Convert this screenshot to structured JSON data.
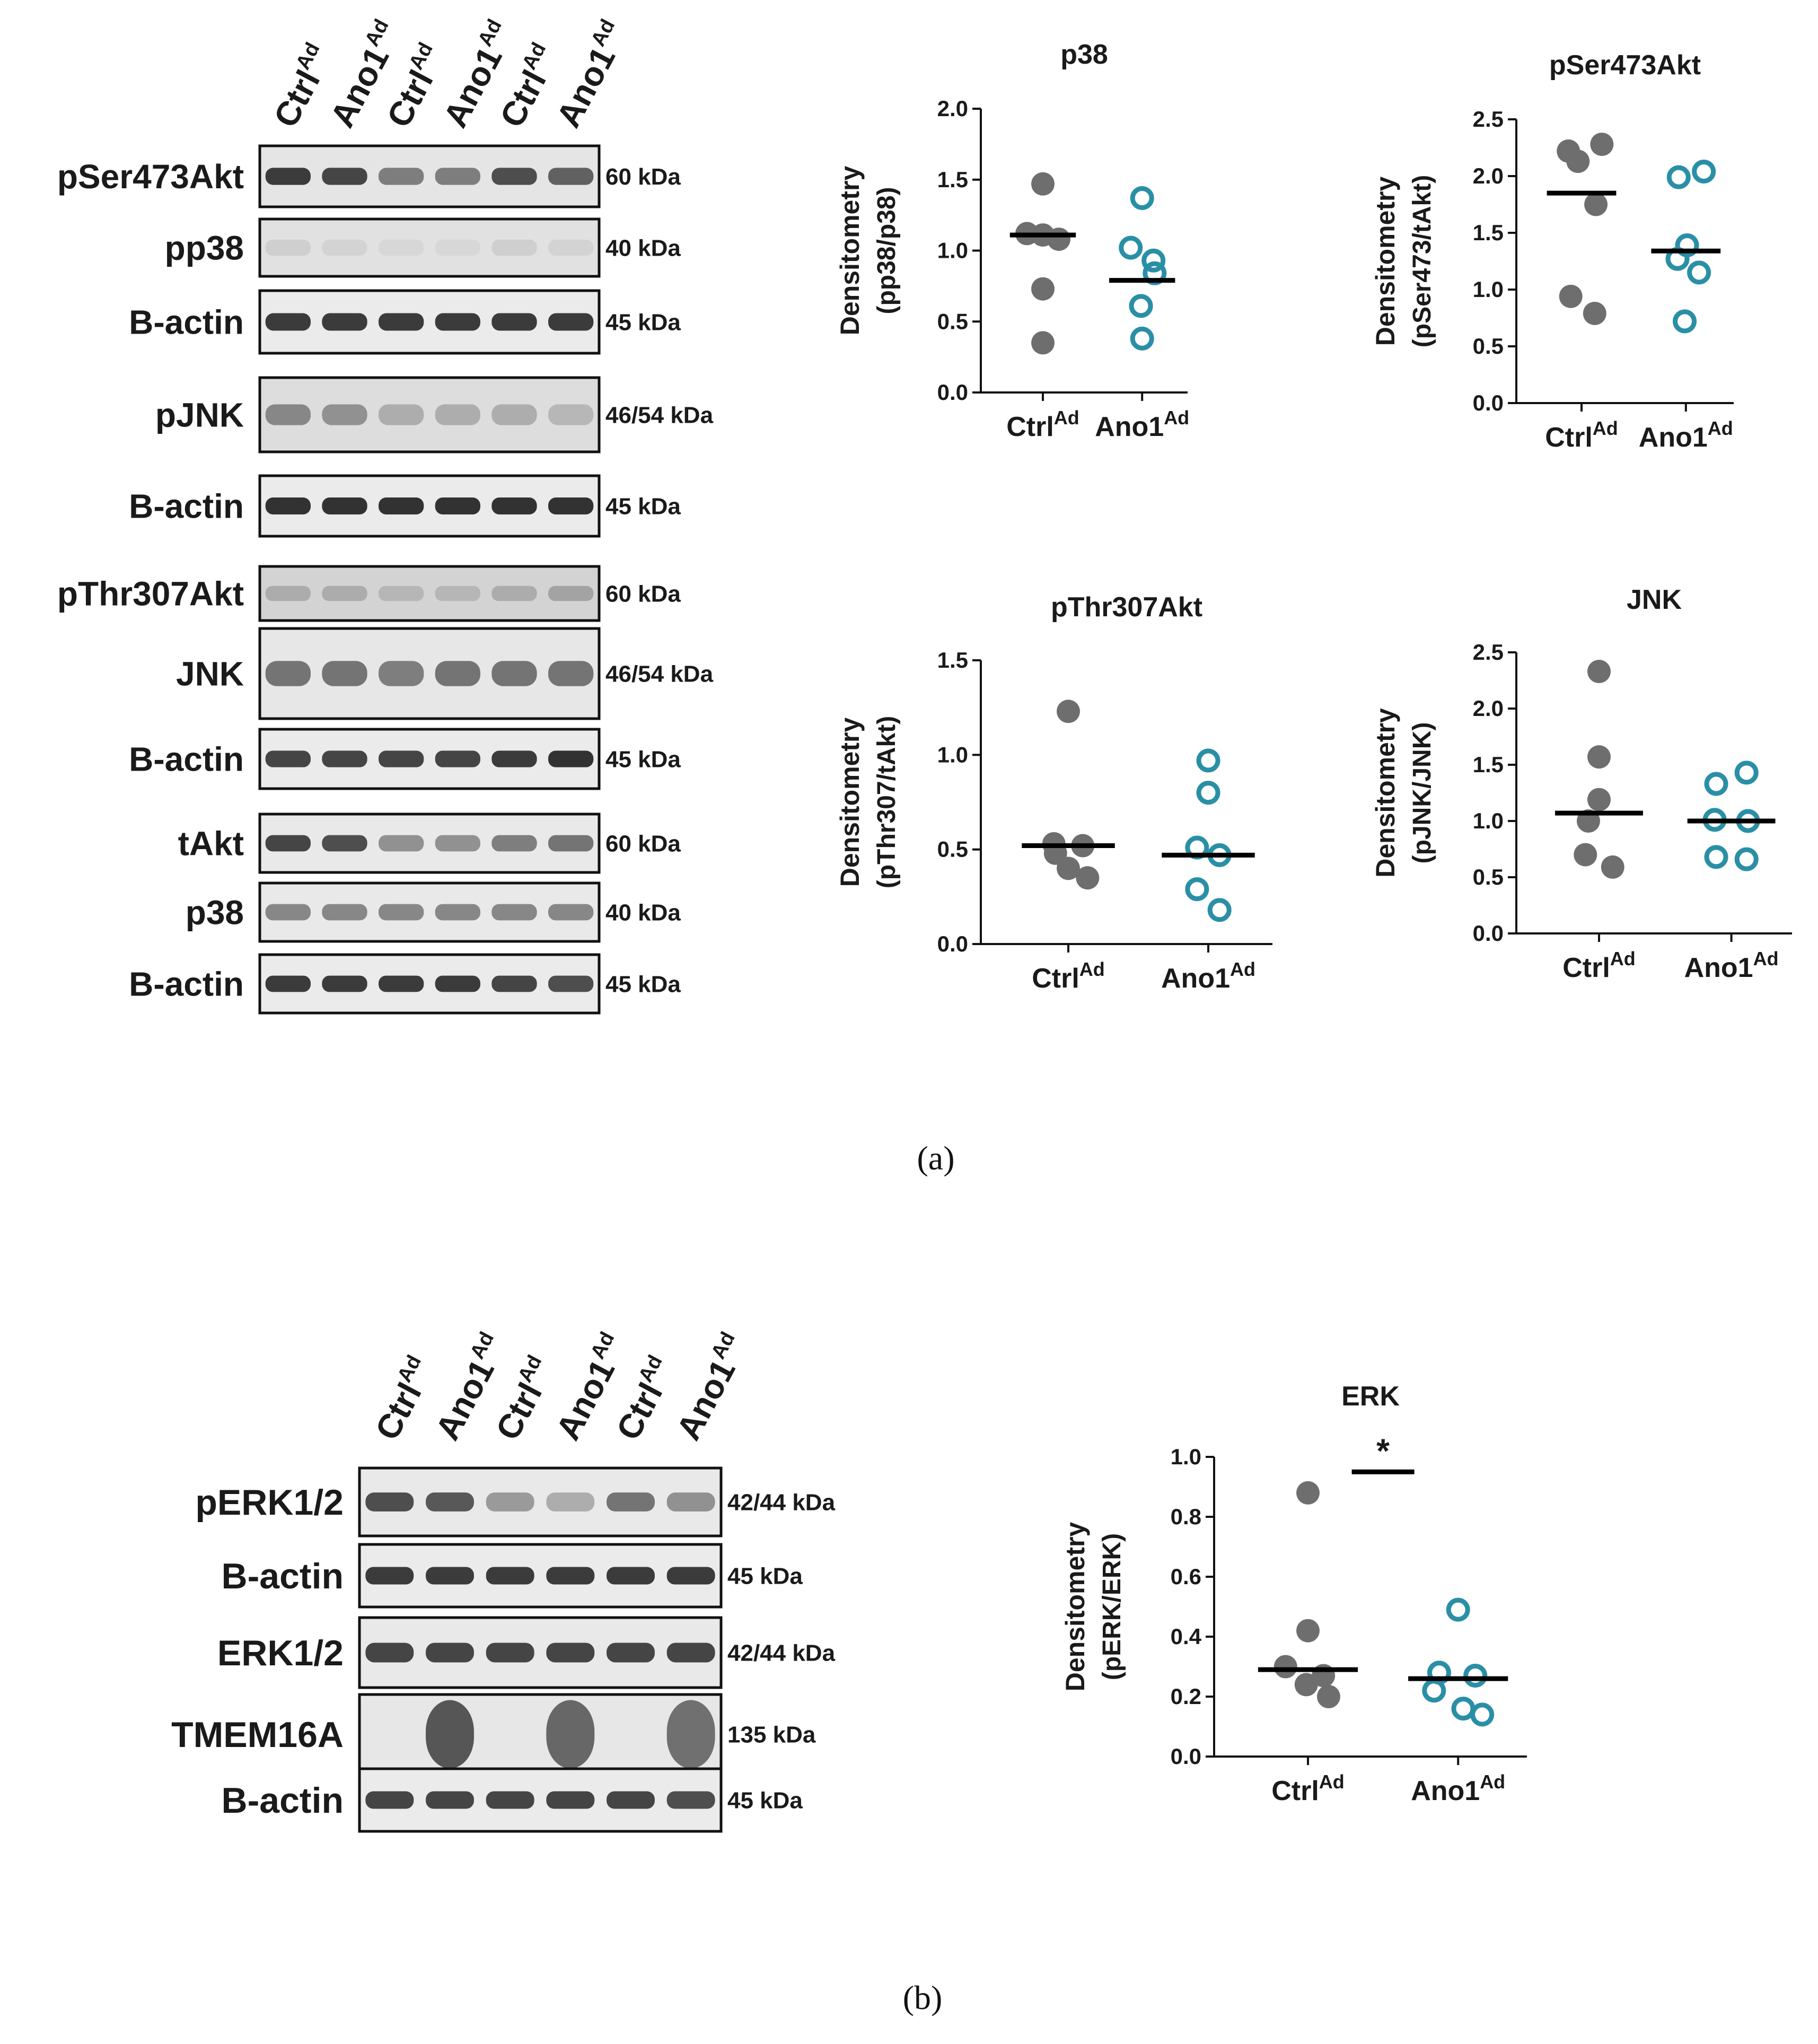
{
  "panel_a": {
    "letter_label": "(a)",
    "blot": {
      "lanes": [
        {
          "name": "Ctrl",
          "sup": "Ad"
        },
        {
          "name": "Ano1",
          "sup": "Ad"
        },
        {
          "name": "Ctrl",
          "sup": "Ad"
        },
        {
          "name": "Ano1",
          "sup": "Ad"
        },
        {
          "name": "Ctrl",
          "sup": "Ad"
        },
        {
          "name": "Ano1",
          "sup": "Ad"
        }
      ],
      "rows": [
        {
          "label": "pSer473Akt",
          "kda": "60 kDa",
          "intensity": [
            0.9,
            0.85,
            0.55,
            0.55,
            0.8,
            0.7
          ],
          "smear": 0.15
        },
        {
          "label": "pp38",
          "kda": "40 kDa",
          "intensity": [
            0.12,
            0.1,
            0.08,
            0.08,
            0.12,
            0.1
          ],
          "smear": 0.25
        },
        {
          "label": "B-actin",
          "kda": "45 kDa",
          "intensity": [
            0.9,
            0.9,
            0.9,
            0.9,
            0.9,
            0.9
          ],
          "smear": 0
        },
        {
          "label": "pJNK",
          "kda": "46/54 kDa",
          "intensity": [
            0.5,
            0.45,
            0.3,
            0.3,
            0.3,
            0.25
          ],
          "smear": 0.35
        },
        {
          "label": "B-actin",
          "kda": "45 kDa",
          "intensity": [
            0.95,
            0.95,
            0.95,
            0.95,
            0.95,
            0.95
          ],
          "smear": 0
        },
        {
          "label": "pThr307Akt",
          "kda": "60 kDa",
          "intensity": [
            0.3,
            0.3,
            0.25,
            0.25,
            0.3,
            0.35
          ],
          "smear": 0.6
        },
        {
          "label": "JNK",
          "kda": "46/54 kDa",
          "intensity": [
            0.6,
            0.6,
            0.55,
            0.6,
            0.6,
            0.6
          ],
          "smear": 0.1
        },
        {
          "label": "B-actin",
          "kda": "45 kDa",
          "intensity": [
            0.85,
            0.85,
            0.85,
            0.85,
            0.9,
            0.95
          ],
          "smear": 0
        },
        {
          "label": "tAkt",
          "kda": "60 kDa",
          "intensity": [
            0.85,
            0.8,
            0.45,
            0.45,
            0.55,
            0.6
          ],
          "smear": 0.05
        },
        {
          "label": "p38",
          "kda": "40 kDa",
          "intensity": [
            0.5,
            0.5,
            0.5,
            0.5,
            0.5,
            0.5
          ],
          "smear": 0.05
        },
        {
          "label": "B-actin",
          "kda": "45 kDa",
          "intensity": [
            0.9,
            0.9,
            0.9,
            0.9,
            0.85,
            0.8
          ],
          "smear": 0
        }
      ]
    }
  },
  "panel_b": {
    "letter_label": "(b)",
    "blot": {
      "lanes": [
        {
          "name": "Ctrl",
          "sup": "Ad"
        },
        {
          "name": "Ano1",
          "sup": "Ad"
        },
        {
          "name": "Ctrl",
          "sup": "Ad"
        },
        {
          "name": "Ano1",
          "sup": "Ad"
        },
        {
          "name": "Ctrl",
          "sup": "Ad"
        },
        {
          "name": "Ano1",
          "sup": "Ad"
        }
      ],
      "rows": [
        {
          "label": "pERK1/2",
          "kda": "42/44 kDa",
          "intensity": [
            0.8,
            0.75,
            0.4,
            0.3,
            0.6,
            0.45
          ],
          "smear": 0.05
        },
        {
          "label": "B-actin",
          "kda": "45 kDa",
          "intensity": [
            0.9,
            0.9,
            0.9,
            0.9,
            0.9,
            0.9
          ],
          "smear": 0
        },
        {
          "label": "ERK1/2",
          "kda": "42/44 kDa",
          "intensity": [
            0.85,
            0.85,
            0.85,
            0.85,
            0.85,
            0.85
          ],
          "smear": 0.05
        },
        {
          "label": "TMEM16A",
          "kda": "135 kDa",
          "intensity": [
            0.0,
            0.85,
            0.0,
            0.75,
            0.0,
            0.7
          ],
          "smear": 0.1
        },
        {
          "label": "B-actin",
          "kda": "45 kDa",
          "intensity": [
            0.85,
            0.85,
            0.85,
            0.85,
            0.85,
            0.8
          ],
          "smear": 0
        }
      ]
    }
  },
  "colors": {
    "ctrl": "#6e6e6e",
    "ano1": "#2a8fa6",
    "axis": "#111111"
  },
  "chart_data": [
    {
      "type": "scatter",
      "title": "p38",
      "ylabel": "Densitometry",
      "ylabel2": "(pp38/p38)",
      "ylim": [
        0,
        2.0
      ],
      "yticks": [
        "0.0",
        "0.5",
        "1.0",
        "1.5",
        "2.0"
      ],
      "categories": [
        {
          "name": "Ctrl",
          "sup": "Ad"
        },
        {
          "name": "Ano1",
          "sup": "Ad"
        }
      ],
      "series": [
        {
          "values": [
            1.47,
            1.12,
            1.11,
            1.08,
            0.73,
            0.35
          ],
          "offsets": [
            0,
            -0.7,
            0,
            0.7,
            0,
            0
          ],
          "mean": 1.11
        },
        {
          "values": [
            1.37,
            1.02,
            0.93,
            0.84,
            0.61,
            0.38
          ],
          "offsets": [
            0,
            -0.5,
            0.5,
            0.55,
            -0.05,
            0
          ],
          "mean": 0.79
        }
      ]
    },
    {
      "type": "scatter",
      "title": "pSer473Akt",
      "ylabel": "Densitometry",
      "ylabel2": "(pSer473/tAkt)",
      "ylim": [
        0,
        2.5
      ],
      "yticks": [
        "0.0",
        "0.5",
        "1.0",
        "1.5",
        "2.0",
        "2.5"
      ],
      "categories": [
        {
          "name": "Ctrl",
          "sup": "Ad"
        },
        {
          "name": "Ano1",
          "sup": "Ad"
        }
      ],
      "series": [
        {
          "values": [
            2.28,
            2.22,
            2.13,
            1.75,
            0.94,
            0.79
          ],
          "offsets": [
            0.85,
            -0.55,
            -0.15,
            0.6,
            -0.45,
            0.55
          ],
          "mean": 1.85
        },
        {
          "values": [
            2.04,
            1.99,
            1.39,
            1.27,
            1.15,
            0.72
          ],
          "offsets": [
            0.75,
            -0.3,
            0.05,
            -0.35,
            0.55,
            -0.05
          ],
          "mean": 1.34
        }
      ]
    },
    {
      "type": "scatter",
      "title": "pThr307Akt",
      "ylabel": "Densitometry",
      "ylabel2": "(pThr307/tAkt)",
      "ylim": [
        0,
        1.5
      ],
      "yticks": [
        "0.0",
        "0.5",
        "1.0",
        "1.5"
      ],
      "categories": [
        {
          "name": "Ctrl",
          "sup": "Ad"
        },
        {
          "name": "Ano1",
          "sup": "Ad"
        }
      ],
      "series": [
        {
          "values": [
            1.23,
            0.53,
            0.52,
            0.48,
            0.4,
            0.35
          ],
          "offsets": [
            0,
            -0.45,
            0.45,
            -0.4,
            0,
            0.6
          ],
          "mean": 0.52
        },
        {
          "values": [
            0.97,
            0.8,
            0.51,
            0.47,
            0.29,
            0.18
          ],
          "offsets": [
            0,
            0,
            -0.35,
            0.35,
            -0.35,
            0.35
          ],
          "mean": 0.47
        }
      ]
    },
    {
      "type": "scatter",
      "title": "JNK",
      "ylabel": "Densitometry",
      "ylabel2": "(pJNK/JNK)",
      "ylim": [
        0,
        2.5
      ],
      "yticks": [
        "0.0",
        "0.5",
        "1.0",
        "1.5",
        "2.0",
        "2.5"
      ],
      "categories": [
        {
          "name": "Ctrl",
          "sup": "Ad"
        },
        {
          "name": "Ano1",
          "sup": "Ad"
        }
      ],
      "series": [
        {
          "values": [
            2.33,
            1.57,
            1.19,
            1.0,
            0.7,
            0.59
          ],
          "offsets": [
            0,
            0,
            0,
            -0.35,
            -0.45,
            0.45
          ],
          "mean": 1.07
        },
        {
          "values": [
            1.43,
            1.33,
            1.01,
            1.0,
            0.68,
            0.66
          ],
          "offsets": [
            0.5,
            -0.5,
            -0.55,
            0.55,
            -0.5,
            0.5
          ],
          "mean": 1.0
        }
      ]
    },
    {
      "type": "scatter",
      "title": "ERK",
      "ylabel": "Densitometry",
      "ylabel2": "(pERK/ERK)",
      "ylim": [
        0,
        1.0
      ],
      "yticks": [
        "0.0",
        "0.2",
        "0.4",
        "0.6",
        "0.8",
        "1.0"
      ],
      "categories": [
        {
          "name": "Ctrl",
          "sup": "Ad"
        },
        {
          "name": "Ano1",
          "sup": "Ad"
        }
      ],
      "series": [
        {
          "values": [
            0.88,
            0.42,
            0.3,
            0.27,
            0.24,
            0.2
          ],
          "offsets": [
            0,
            0,
            -0.65,
            0.45,
            -0.05,
            0.6
          ],
          "mean": 0.29
        },
        {
          "values": [
            0.49,
            0.28,
            0.27,
            0.22,
            0.16,
            0.14
          ],
          "offsets": [
            0,
            -0.55,
            0.5,
            -0.7,
            0.15,
            0.7
          ],
          "mean": 0.26
        }
      ],
      "significance": "*"
    }
  ]
}
